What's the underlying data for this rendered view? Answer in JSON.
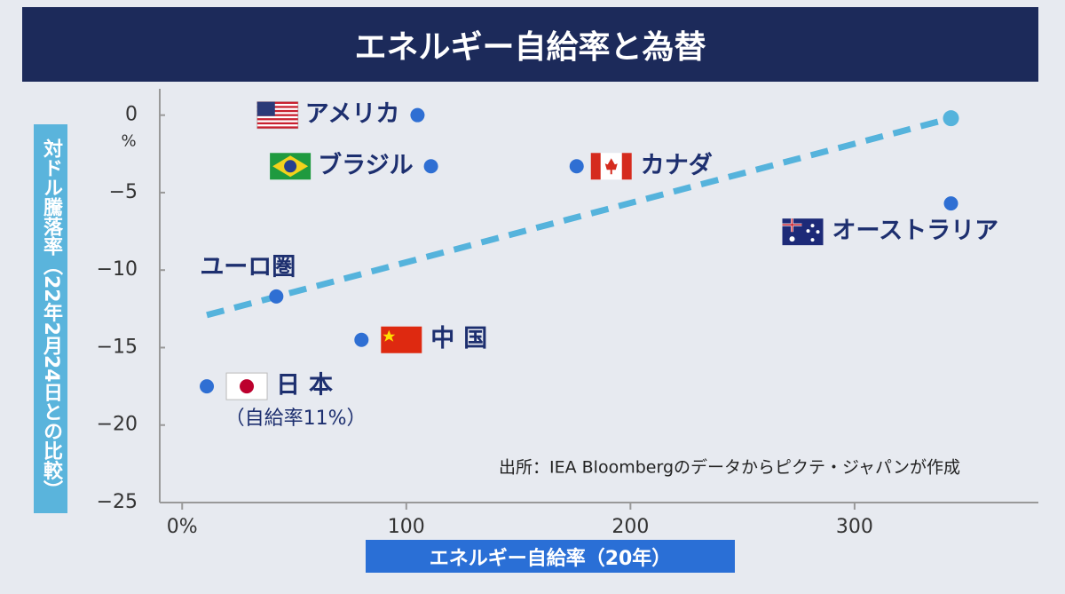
{
  "chart_data": {
    "type": "scatter",
    "title": "エネルギー自給率と為替",
    "y_label": "対ドル騰落率（22年2月24日との比較）",
    "y_unit": "%",
    "x_label": "エネルギー自給率（20年）",
    "source": "出所：IEA Bloombergのデータからピクテ・ジャパンが作成",
    "labels": [
      "アメリカ",
      "ブラジル",
      "カナダ",
      "オーストラリア",
      "ユーロ圏",
      "中国",
      "日本"
    ],
    "x": [
      105,
      111,
      176,
      343,
      42,
      80,
      11
    ],
    "values": [
      0,
      -3.3,
      -3.3,
      -5.7,
      -11.7,
      -14.5,
      -17.5
    ],
    "color": "#2f6fd3",
    "note": "（自給率11%）",
    "trendline": {
      "x": [
        11,
        343
      ],
      "y": [
        -12.9,
        -0.2
      ],
      "color": "#55b3dc"
    },
    "xlim": [
      -10,
      382
    ],
    "ylim": [
      -25,
      1.7
    ],
    "xticks": [
      {
        "value": 0,
        "label": "0%"
      },
      100,
      200,
      300
    ],
    "yticks": [
      0,
      {
        "value": -5,
        "label": "−5"
      },
      {
        "value": -10,
        "label": "−10"
      },
      {
        "value": -15,
        "label": "−15"
      },
      {
        "value": -20,
        "label": "−20"
      },
      {
        "value": -25,
        "label": "−25"
      }
    ]
  }
}
